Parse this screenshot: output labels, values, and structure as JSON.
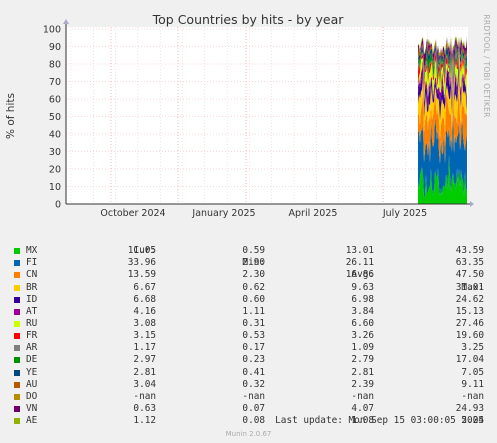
{
  "chart_data": {
    "type": "area",
    "title": "Top Countries by hits - by year",
    "ylabel": "% of hits",
    "ylim": [
      0,
      100
    ],
    "yticks": [
      0,
      10,
      20,
      30,
      40,
      50,
      60,
      70,
      80,
      90,
      100
    ],
    "xlabels": [
      "October 2024",
      "January 2025",
      "April 2025",
      "July 2025"
    ],
    "side_text": "RRDTOOL / TOBI OETIKER",
    "stacked": true,
    "grid": true,
    "data_starts": "late June 2025",
    "series": [
      {
        "name": "MX",
        "color": "#00cc00",
        "cur": "11.05",
        "min": "0.59",
        "avg": "13.01",
        "max": "43.59"
      },
      {
        "name": "FI",
        "color": "#0066b3",
        "cur": "33.96",
        "min": "2.90",
        "avg": "26.11",
        "max": "63.35"
      },
      {
        "name": "CN",
        "color": "#ff8000",
        "cur": "13.59",
        "min": "2.30",
        "avg": "16.86",
        "max": "47.50"
      },
      {
        "name": "BR",
        "color": "#ffcc00",
        "cur": "6.67",
        "min": "0.62",
        "avg": "9.63",
        "max": "31.01"
      },
      {
        "name": "ID",
        "color": "#330099",
        "cur": "6.68",
        "min": "0.60",
        "avg": "6.98",
        "max": "24.62"
      },
      {
        "name": "AT",
        "color": "#990099",
        "cur": "4.16",
        "min": "1.11",
        "avg": "3.84",
        "max": "15.13"
      },
      {
        "name": "RU",
        "color": "#ccff00",
        "cur": "3.08",
        "min": "0.31",
        "avg": "6.60",
        "max": "27.46"
      },
      {
        "name": "FR",
        "color": "#ff0000",
        "cur": "3.15",
        "min": "0.53",
        "avg": "3.26",
        "max": "19.60"
      },
      {
        "name": "AR",
        "color": "#808080",
        "cur": "1.17",
        "min": "0.17",
        "avg": "1.09",
        "max": "3.25"
      },
      {
        "name": "DE",
        "color": "#008f00",
        "cur": "2.97",
        "min": "0.23",
        "avg": "2.79",
        "max": "17.04"
      },
      {
        "name": "YE",
        "color": "#00487d",
        "cur": "2.81",
        "min": "0.41",
        "avg": "2.81",
        "max": "7.05"
      },
      {
        "name": "AU",
        "color": "#b35a00",
        "cur": "3.04",
        "min": "0.32",
        "avg": "2.39",
        "max": "9.11"
      },
      {
        "name": "DO",
        "color": "#b38f00",
        "cur": "-nan",
        "min": "-nan",
        "avg": "-nan",
        "max": "-nan"
      },
      {
        "name": "VN",
        "color": "#6b006b",
        "cur": "0.63",
        "min": "0.07",
        "avg": "4.07",
        "max": "24.93"
      },
      {
        "name": "AE",
        "color": "#8fb300",
        "cur": "1.12",
        "min": "0.08",
        "avg": "1.08",
        "max": "5.04"
      }
    ]
  },
  "legend": {
    "headers": {
      "cur": "Cur:",
      "min": "Min:",
      "avg": "Avg:",
      "max": "Max:"
    }
  },
  "footer": {
    "last_update": "Last update: Mon Sep 15 03:00:05 2025",
    "munin": "Munin 2.0.67"
  }
}
